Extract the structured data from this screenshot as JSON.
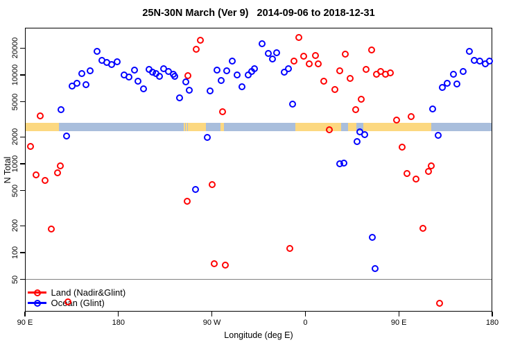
{
  "title": "25N-30N March (Ver 9)   2014-09-06 to 2018-12-31",
  "legend": {
    "items": [
      {
        "label": "Land (Nadir&Glint)",
        "color": "#ff0000"
      },
      {
        "label": "Ocean (Glint)",
        "color": "#0000ff"
      }
    ]
  },
  "chart_data": {
    "type": "scatter",
    "title": "25N-30N March (Ver 9)   2014-09-06 to 2018-12-31",
    "xlabel": "Longitude (deg E)",
    "ylabel": "N Total",
    "x_axis": {
      "min": 90,
      "max": 540,
      "ticks": [
        {
          "value": 90,
          "label": "90 E"
        },
        {
          "value": 180,
          "label": "180"
        },
        {
          "value": 270,
          "label": "90 W"
        },
        {
          "value": 360,
          "label": "0"
        },
        {
          "value": 450,
          "label": "90 E"
        },
        {
          "value": 540,
          "label": "180"
        }
      ]
    },
    "y_axis": {
      "scale": "log",
      "min": 21,
      "max": 34000,
      "ticks": [
        {
          "value": 50,
          "label": "50"
        },
        {
          "value": 100,
          "label": "100"
        },
        {
          "value": 200,
          "label": "200"
        },
        {
          "value": 500,
          "label": "500"
        },
        {
          "value": 1000,
          "label": "1000"
        },
        {
          "value": 2000,
          "label": "2000"
        },
        {
          "value": 5000,
          "label": "5000"
        },
        {
          "value": 10000,
          "label": "10000"
        },
        {
          "value": 20000,
          "label": "20000"
        }
      ]
    },
    "reference_line_n": 50,
    "reference_line_color": "#808080",
    "coast_band": {
      "n_top": 2900,
      "n_bottom": 2330,
      "land_color": "#FCD880",
      "ocean_color": "#A9BEDC",
      "segments": [
        {
          "type": "land",
          "from": 90,
          "to": 122.5
        },
        {
          "type": "ocean",
          "from": 122.5,
          "to": 242.7
        },
        {
          "type": "land",
          "from": 242.7,
          "to": 244.0
        },
        {
          "type": "ocean",
          "from": 244.0,
          "to": 244.8
        },
        {
          "type": "land",
          "from": 244.8,
          "to": 246.2
        },
        {
          "type": "ocean",
          "from": 246.2,
          "to": 247.0
        },
        {
          "type": "land",
          "from": 247.0,
          "to": 264.0
        },
        {
          "type": "ocean",
          "from": 264.0,
          "to": 278.0
        },
        {
          "type": "land",
          "from": 278.0,
          "to": 281.3
        },
        {
          "type": "ocean",
          "from": 281.3,
          "to": 350.7
        },
        {
          "type": "land",
          "from": 350.7,
          "to": 394.7
        },
        {
          "type": "ocean",
          "from": 394.7,
          "to": 401.3
        },
        {
          "type": "land",
          "from": 401.3,
          "to": 409.3
        },
        {
          "type": "ocean",
          "from": 409.3,
          "to": 416.0
        },
        {
          "type": "land",
          "from": 416.0,
          "to": 481.3
        },
        {
          "type": "ocean",
          "from": 481.3,
          "to": 540.0
        }
      ]
    },
    "series": [
      {
        "name": "Land (Nadir&Glint)",
        "color": "#ff0000",
        "points": [
          [
            104.7,
            3460
          ],
          [
            95.3,
            1570
          ],
          [
            100.7,
            750
          ],
          [
            109.3,
            650
          ],
          [
            121.3,
            790
          ],
          [
            124,
            950
          ],
          [
            115.3,
            184
          ],
          [
            131.3,
            28
          ],
          [
            258.7,
            24600
          ],
          [
            254.7,
            19500
          ],
          [
            280,
            3860
          ],
          [
            246.7,
            9820
          ],
          [
            246,
            378
          ],
          [
            270,
            583
          ],
          [
            272,
            75
          ],
          [
            282.7,
            72
          ],
          [
            354,
            26400
          ],
          [
            349.3,
            14300
          ],
          [
            358.7,
            16300
          ],
          [
            364,
            13300
          ],
          [
            369.8,
            16500
          ],
          [
            372.4,
            13300
          ],
          [
            378,
            8500
          ],
          [
            388.7,
            6860
          ],
          [
            393.3,
            11100
          ],
          [
            398.4,
            17100
          ],
          [
            403.3,
            9100
          ],
          [
            383.3,
            2420
          ],
          [
            344.8,
            111
          ],
          [
            424,
            19100
          ],
          [
            418.7,
            11600
          ],
          [
            428.7,
            10200
          ],
          [
            432.7,
            10900
          ],
          [
            437.3,
            10200
          ],
          [
            442,
            10600
          ],
          [
            414,
            5330
          ],
          [
            408.7,
            4070
          ],
          [
            448,
            3100
          ],
          [
            462,
            3400
          ],
          [
            453.3,
            1540
          ],
          [
            458,
            780
          ],
          [
            466.7,
            673
          ],
          [
            478.7,
            820
          ],
          [
            481.3,
            950
          ],
          [
            473.3,
            187
          ],
          [
            489.3,
            27
          ]
        ]
      },
      {
        "name": "Ocean (Glint)",
        "color": "#0000ff",
        "points": [
          [
            124.7,
            4070
          ],
          [
            130,
            2050
          ],
          [
            135.3,
            7500
          ],
          [
            140,
            8050
          ],
          [
            144.7,
            10400
          ],
          [
            148.7,
            7780
          ],
          [
            152.7,
            11100
          ],
          [
            159.3,
            18500
          ],
          [
            164,
            14600
          ],
          [
            168.7,
            13800
          ],
          [
            173.3,
            13100
          ],
          [
            178.7,
            14100
          ],
          [
            185.3,
            10000
          ],
          [
            190,
            9480
          ],
          [
            195.3,
            11400
          ],
          [
            198.7,
            8500
          ],
          [
            204,
            6980
          ],
          [
            209.3,
            11600
          ],
          [
            212.7,
            10700
          ],
          [
            216,
            10400
          ],
          [
            219.3,
            9640
          ],
          [
            223.3,
            11800
          ],
          [
            228,
            10900
          ],
          [
            232.7,
            10200
          ],
          [
            234,
            9640
          ],
          [
            238.7,
            5520
          ],
          [
            244.7,
            8360
          ],
          [
            248,
            6730
          ],
          [
            274.7,
            11400
          ],
          [
            278.7,
            8660
          ],
          [
            284,
            11100
          ],
          [
            289.3,
            14300
          ],
          [
            294,
            10000
          ],
          [
            299.3,
            7360
          ],
          [
            304.7,
            10000
          ],
          [
            308,
            10900
          ],
          [
            311.2,
            11700
          ],
          [
            318.5,
            22500
          ],
          [
            324.5,
            17500
          ],
          [
            328.5,
            15000
          ],
          [
            332.5,
            17700
          ],
          [
            339.7,
            10700
          ],
          [
            343.7,
            11700
          ],
          [
            348,
            4700
          ],
          [
            265.3,
            1980
          ],
          [
            254,
            514
          ],
          [
            268.3,
            6610
          ],
          [
            392.8,
            1000
          ],
          [
            396.8,
            1020
          ],
          [
            412.7,
            2290
          ],
          [
            417.3,
            2130
          ],
          [
            410,
            1780
          ],
          [
            424.7,
            149
          ],
          [
            427.3,
            66
          ],
          [
            482.7,
            4140
          ],
          [
            488,
            2090
          ],
          [
            492,
            7230
          ],
          [
            496.7,
            8050
          ],
          [
            502.7,
            10200
          ],
          [
            506,
            7910
          ],
          [
            512,
            10900
          ],
          [
            518,
            18500
          ],
          [
            522.7,
            14600
          ],
          [
            528,
            14300
          ],
          [
            533.3,
            13300
          ],
          [
            537.3,
            14300
          ]
        ]
      }
    ]
  }
}
